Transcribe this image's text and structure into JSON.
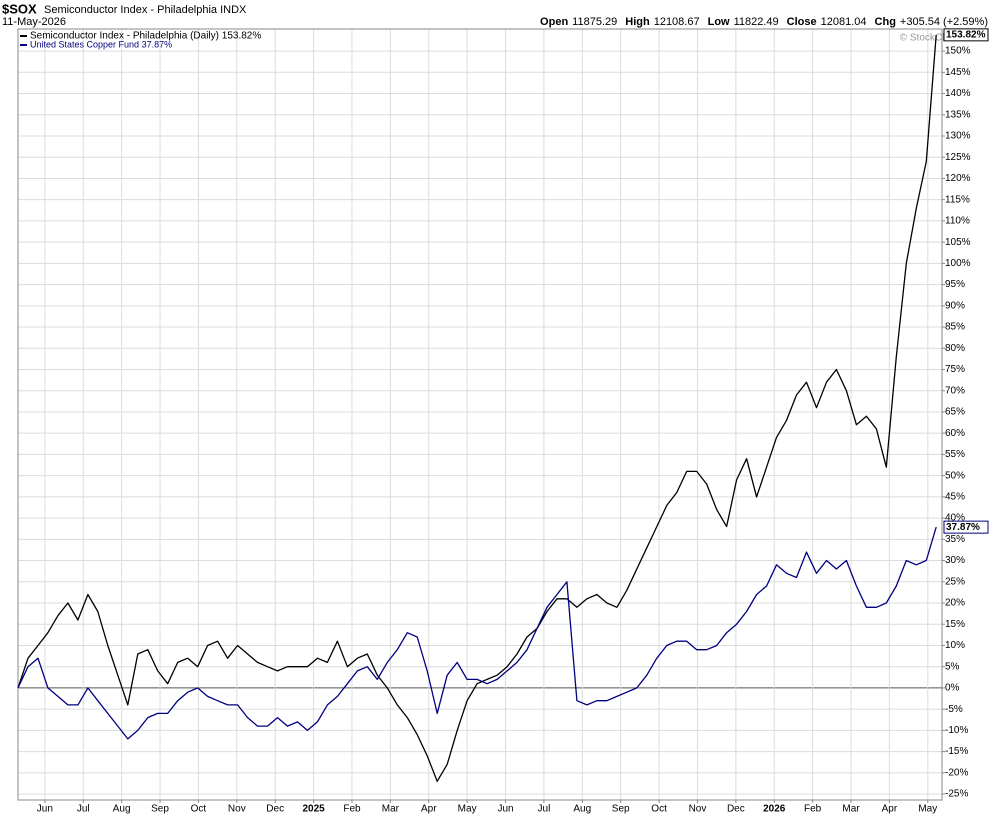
{
  "chart_data": {
    "type": "line",
    "symbol": "$SOX",
    "title": "Semiconductor Index - Philadelphia INDX",
    "date": "11-May-2026",
    "quote": [
      {
        "label": "Open",
        "value": "11875.29"
      },
      {
        "label": "High",
        "value": "12108.67"
      },
      {
        "label": "Low",
        "value": "11822.49"
      },
      {
        "label": "Close",
        "value": "12081.04"
      },
      {
        "label": "Chg",
        "value": "+305.54 (+2.59%)"
      }
    ],
    "watermark": "© StockCharts.com",
    "legend": "upper left",
    "grid": true,
    "x": [
      -0.7,
      -0.44,
      -0.18,
      0.08,
      0.34,
      0.6,
      0.86,
      1.12,
      1.38,
      1.64,
      1.9,
      2.16,
      2.42,
      2.68,
      2.94,
      3.2,
      3.46,
      3.72,
      3.98,
      4.24,
      4.5,
      4.76,
      5.02,
      5.28,
      5.54,
      5.8,
      6.06,
      6.32,
      6.58,
      6.84,
      7.1,
      7.36,
      7.62,
      7.88,
      8.14,
      8.4,
      8.66,
      8.92,
      9.18,
      9.44,
      9.7,
      9.96,
      10.22,
      10.48,
      10.74,
      11.0,
      11.26,
      11.52,
      11.78,
      12.04,
      12.3,
      12.56,
      12.82,
      13.08,
      13.34,
      13.6,
      13.86,
      14.12,
      14.38,
      14.64,
      14.9,
      15.16,
      15.42,
      15.68,
      15.94,
      16.2,
      16.46,
      16.72,
      16.98,
      17.24,
      17.5,
      17.76,
      18.02,
      18.28,
      18.54,
      18.8,
      19.06,
      19.32,
      19.58,
      19.84,
      20.1,
      20.36,
      20.62,
      20.88,
      21.14,
      21.4,
      21.66,
      21.92,
      22.18,
      22.44,
      22.7,
      22.96,
      23.22
    ],
    "series": [
      {
        "name": "Semiconductor Index - Philadelphia (Daily) 153.82%",
        "color": "#000000",
        "values": [
          0,
          7,
          10,
          13,
          17,
          20,
          16,
          22,
          18,
          10,
          3,
          -4,
          8,
          9,
          4,
          1,
          6,
          7,
          5,
          10,
          11,
          7,
          10,
          8,
          6,
          5,
          4,
          5,
          5,
          5,
          7,
          6,
          11,
          5,
          7,
          8,
          3,
          0,
          -4,
          -7,
          -11,
          -16,
          -22,
          -18,
          -10,
          -3,
          1,
          2,
          3,
          5,
          8,
          12,
          14,
          18,
          21,
          21,
          19,
          21,
          22,
          20,
          19,
          23,
          28,
          33,
          38,
          43,
          46,
          51,
          51,
          48,
          42,
          38,
          49,
          54,
          45,
          52,
          59,
          63,
          69,
          72,
          66,
          72,
          75,
          70,
          62,
          64,
          61,
          52,
          78,
          100,
          113,
          124,
          153.82
        ],
        "value_labels": [
          null,
          null,
          null,
          null,
          null,
          null,
          null,
          null,
          null,
          null,
          null,
          null,
          null,
          null,
          null,
          null,
          null,
          null,
          null,
          null,
          null,
          null,
          null,
          null,
          null,
          null,
          null,
          null,
          null,
          null,
          null,
          null,
          null,
          null,
          null,
          null,
          null,
          null,
          null,
          null,
          null,
          null,
          null,
          null,
          null,
          null,
          null,
          null,
          null,
          null,
          null,
          null,
          null,
          null,
          null,
          null,
          null,
          null,
          null,
          null,
          null,
          null,
          null,
          null,
          null,
          null,
          null,
          null,
          null,
          null,
          null,
          null,
          null,
          null,
          null,
          null,
          null,
          null,
          null,
          null,
          null,
          null,
          null,
          null,
          null,
          null,
          null,
          null,
          null,
          null,
          null,
          null,
          "153.82%"
        ]
      },
      {
        "name": "United States Copper Fund 37.87%",
        "color": "#000080",
        "values": [
          0,
          5,
          7,
          0,
          -2,
          -4,
          -4,
          0,
          -3,
          -6,
          -9,
          -12,
          -10,
          -7,
          -6,
          -6,
          -3,
          -1,
          0,
          -2,
          -3,
          -4,
          -4,
          -7,
          -9,
          -9,
          -7,
          -9,
          -8,
          -10,
          -8,
          -4,
          -2,
          1,
          4,
          5,
          2,
          6,
          9,
          13,
          12,
          4,
          -6,
          3,
          6,
          2,
          2,
          1,
          2,
          4,
          6,
          9,
          14,
          19,
          22,
          25,
          -3,
          -4,
          -3,
          -3,
          -2,
          -1,
          0,
          3,
          7,
          10,
          11,
          11,
          9,
          9,
          10,
          13,
          15,
          18,
          22,
          24,
          29,
          27,
          26,
          32,
          27,
          30,
          28,
          30,
          24,
          19,
          19,
          20,
          24,
          30,
          29,
          30,
          37.87
        ],
        "value_labels": [
          null,
          null,
          null,
          null,
          null,
          null,
          null,
          null,
          null,
          null,
          null,
          null,
          null,
          null,
          null,
          null,
          null,
          null,
          null,
          null,
          null,
          null,
          null,
          null,
          null,
          null,
          null,
          null,
          null,
          null,
          null,
          null,
          null,
          null,
          null,
          null,
          null,
          null,
          null,
          null,
          null,
          null,
          null,
          null,
          null,
          null,
          null,
          null,
          null,
          null,
          null,
          null,
          null,
          null,
          null,
          null,
          null,
          null,
          null,
          null,
          null,
          null,
          null,
          null,
          null,
          null,
          null,
          null,
          null,
          null,
          null,
          null,
          null,
          null,
          null,
          null,
          null,
          null,
          null,
          null,
          null,
          null,
          null,
          null,
          null,
          null,
          null,
          null,
          null,
          null,
          null,
          null,
          "37.87%"
        ]
      }
    ],
    "xlim": [
      -0.7,
      23.37
    ],
    "xticks": [
      {
        "value": 0,
        "label": "Jun"
      },
      {
        "value": 1,
        "label": "Jul"
      },
      {
        "value": 2,
        "label": "Aug"
      },
      {
        "value": 3,
        "label": "Sep"
      },
      {
        "value": 4,
        "label": "Oct"
      },
      {
        "value": 5,
        "label": "Nov"
      },
      {
        "value": 6,
        "label": "Dec"
      },
      {
        "value": 7,
        "label": "2025"
      },
      {
        "value": 8,
        "label": "Feb"
      },
      {
        "value": 9,
        "label": "Mar"
      },
      {
        "value": 10,
        "label": "Apr"
      },
      {
        "value": 11,
        "label": "May"
      },
      {
        "value": 12,
        "label": "Jun"
      },
      {
        "value": 13,
        "label": "Jul"
      },
      {
        "value": 14,
        "label": "Aug"
      },
      {
        "value": 15,
        "label": "Sep"
      },
      {
        "value": 16,
        "label": "Oct"
      },
      {
        "value": 17,
        "label": "Nov"
      },
      {
        "value": 18,
        "label": "Dec"
      },
      {
        "value": 19,
        "label": "2026"
      },
      {
        "value": 20,
        "label": "Feb"
      },
      {
        "value": 21,
        "label": "Mar"
      },
      {
        "value": 22,
        "label": "Apr"
      },
      {
        "value": 23,
        "label": "May"
      }
    ],
    "ylim": [
      -26.4,
      155.2
    ],
    "yticks": [
      {
        "value": -25,
        "label": "-25%"
      },
      {
        "value": -20,
        "label": "-20%"
      },
      {
        "value": -15,
        "label": "-15%"
      },
      {
        "value": -10,
        "label": "-10%"
      },
      {
        "value": -5,
        "label": "-5%"
      },
      {
        "value": 0,
        "label": "0%"
      },
      {
        "value": 5,
        "label": "5%"
      },
      {
        "value": 10,
        "label": "10%"
      },
      {
        "value": 15,
        "label": "15%"
      },
      {
        "value": 20,
        "label": "20%"
      },
      {
        "value": 25,
        "label": "25%"
      },
      {
        "value": 30,
        "label": "30%"
      },
      {
        "value": 35,
        "label": "35%"
      },
      {
        "value": 40,
        "label": "40%"
      },
      {
        "value": 45,
        "label": "45%"
      },
      {
        "value": 50,
        "label": "50%"
      },
      {
        "value": 55,
        "label": "55%"
      },
      {
        "value": 60,
        "label": "60%"
      },
      {
        "value": 65,
        "label": "65%"
      },
      {
        "value": 70,
        "label": "70%"
      },
      {
        "value": 75,
        "label": "75%"
      },
      {
        "value": 80,
        "label": "80%"
      },
      {
        "value": 85,
        "label": "85%"
      },
      {
        "value": 90,
        "label": "90%"
      },
      {
        "value": 95,
        "label": "95%"
      },
      {
        "value": 100,
        "label": "100%"
      },
      {
        "value": 105,
        "label": "105%"
      },
      {
        "value": 110,
        "label": "110%"
      },
      {
        "value": 115,
        "label": "115%"
      },
      {
        "value": 120,
        "label": "120%"
      },
      {
        "value": 125,
        "label": "125%"
      },
      {
        "value": 130,
        "label": "130%"
      },
      {
        "value": 135,
        "label": "135%"
      },
      {
        "value": 140,
        "label": "140%"
      },
      {
        "value": 145,
        "label": "145%"
      },
      {
        "value": 150,
        "label": "150%"
      }
    ]
  }
}
